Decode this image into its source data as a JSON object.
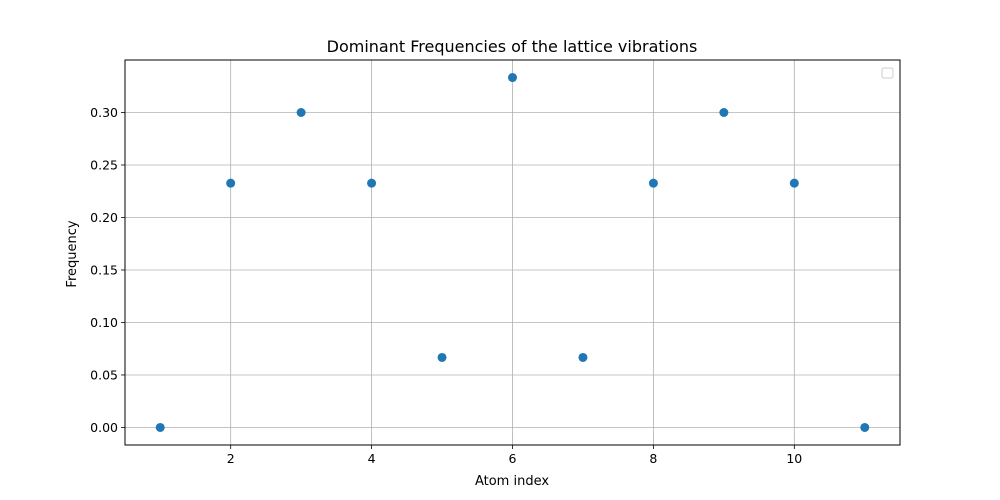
{
  "chart_data": {
    "type": "scatter",
    "title": "Dominant Frequencies of the lattice vibrations",
    "xlabel": "Atom index",
    "ylabel": "Frequency",
    "xlim": [
      0.5,
      11.5
    ],
    "ylim": [
      -0.0167,
      0.35
    ],
    "xticks": [
      2,
      4,
      6,
      8,
      10
    ],
    "yticks": [
      0.0,
      0.05,
      0.1,
      0.15,
      0.2,
      0.25,
      0.3
    ],
    "xtick_labels": [
      "2",
      "4",
      "6",
      "8",
      "10"
    ],
    "ytick_labels": [
      "0.00",
      "0.05",
      "0.10",
      "0.15",
      "0.20",
      "0.25",
      "0.30"
    ],
    "grid": true,
    "legend": {
      "placement": "top-right",
      "entries": []
    },
    "color": "#1f77b4",
    "x": [
      1,
      2,
      3,
      4,
      5,
      6,
      7,
      8,
      9,
      10,
      11
    ],
    "y": [
      0.0,
      0.2327,
      0.3,
      0.2327,
      0.0667,
      0.3333,
      0.0667,
      0.2327,
      0.3,
      0.2327,
      0.0
    ]
  }
}
